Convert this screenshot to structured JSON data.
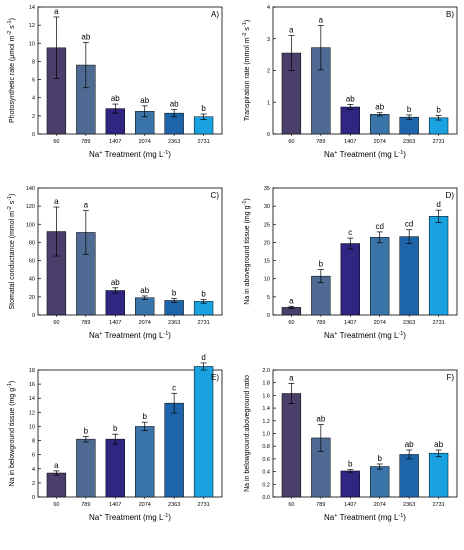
{
  "panel_colors": [
    "#4a3f6b",
    "#4f6a93",
    "#2e2680",
    "#3a74a8",
    "#1d65a8",
    "#1aa1e0"
  ],
  "chart_data": [
    {
      "type": "bar",
      "panel": "A)",
      "categories": [
        "60",
        "789",
        "1407",
        "2074",
        "2363",
        "2731"
      ],
      "values": [
        9.5,
        7.6,
        2.8,
        2.5,
        2.3,
        1.9
      ],
      "errors": [
        3.4,
        2.5,
        0.5,
        0.6,
        0.4,
        0.3
      ],
      "letters": [
        "a",
        "ab",
        "ab",
        "ab",
        "ab",
        "b"
      ],
      "ylim": [
        0,
        14
      ],
      "yticks": [
        "0",
        "2",
        "4",
        "6",
        "8",
        "10",
        "12",
        "14"
      ],
      "ylabel": [
        "Photosynthetic rate (μmol m",
        "-2",
        " s",
        "-1",
        ")"
      ],
      "xlabel": [
        "Na",
        "+",
        " Treatment (mg L",
        "-1",
        ")"
      ]
    },
    {
      "type": "bar",
      "panel": "B)",
      "categories": [
        "60",
        "789",
        "1407",
        "2074",
        "2363",
        "2731"
      ],
      "values": [
        2.55,
        2.72,
        0.85,
        0.62,
        0.53,
        0.51
      ],
      "errors": [
        0.55,
        0.7,
        0.08,
        0.05,
        0.07,
        0.07
      ],
      "letters": [
        "a",
        "a",
        "ab",
        "ab",
        "b",
        "b"
      ],
      "ylim": [
        0,
        4
      ],
      "yticks": [
        "0",
        "1",
        "2",
        "3",
        "4"
      ],
      "ylabel": [
        "Transpiration rate (mmol m",
        "-2",
        " s",
        "-1",
        ")"
      ],
      "xlabel": [
        "Na",
        "+",
        " Treatment (mg L",
        "-1",
        ")"
      ]
    },
    {
      "type": "bar",
      "panel": "C)",
      "categories": [
        "60",
        "789",
        "1407",
        "2074",
        "2363",
        "2731"
      ],
      "values": [
        92,
        91,
        27,
        19,
        16,
        15
      ],
      "errors": [
        27,
        24,
        3,
        2,
        2,
        2
      ],
      "letters": [
        "a",
        "a",
        "ab",
        "ab",
        "b",
        "b"
      ],
      "ylim": [
        0,
        140
      ],
      "yticks": [
        "0",
        "20",
        "40",
        "60",
        "80",
        "100",
        "120",
        "140"
      ],
      "ylabel": [
        "Stomatal conductance (mmol m",
        "-2",
        " s",
        "-1",
        ")"
      ],
      "xlabel": [
        "Na",
        "+",
        " Treatment (mg L",
        "-1",
        ")"
      ]
    },
    {
      "type": "bar",
      "panel": "D)",
      "categories": [
        "60",
        "789",
        "1407",
        "2074",
        "2363",
        "2731"
      ],
      "values": [
        2.1,
        10.7,
        19.7,
        21.4,
        21.6,
        27.2
      ],
      "errors": [
        0.3,
        1.8,
        1.5,
        1.5,
        1.9,
        1.7
      ],
      "letters": [
        "a",
        "b",
        "c",
        "cd",
        "cd",
        "d"
      ],
      "ylim": [
        0,
        35
      ],
      "yticks": [
        "0",
        "5",
        "10",
        "15",
        "20",
        "25",
        "30",
        "35"
      ],
      "ylabel": [
        "Na in aboveground tissue (mg g",
        "-1",
        ")",
        "",
        ""
      ],
      "xlabel": [
        "Na",
        "+",
        " Treatment (mg L",
        "-1",
        ")"
      ]
    },
    {
      "type": "bar",
      "panel": "E)",
      "categories": [
        "60",
        "789",
        "1407",
        "2074",
        "2363",
        "2731"
      ],
      "values": [
        3.4,
        8.2,
        8.2,
        10.0,
        13.3,
        18.5
      ],
      "errors": [
        0.3,
        0.4,
        0.7,
        0.6,
        1.4,
        0.5
      ],
      "letters": [
        "a",
        "b",
        "b",
        "b",
        "c",
        "d"
      ],
      "ylim": [
        0,
        18
      ],
      "yticks": [
        "0",
        "2",
        "4",
        "6",
        "8",
        "10",
        "12",
        "14",
        "16",
        "18"
      ],
      "ylabel": [
        "Na in belowground tissue (mg g",
        "-1",
        ")",
        "",
        ""
      ],
      "xlabel": [
        "Na",
        "+",
        " Treatment (mg L",
        "-1",
        ")"
      ]
    },
    {
      "type": "bar",
      "panel": "F)",
      "categories": [
        "60",
        "789",
        "1407",
        "2074",
        "2363",
        "2731"
      ],
      "values": [
        1.63,
        0.93,
        0.41,
        0.48,
        0.67,
        0.69
      ],
      "errors": [
        0.16,
        0.21,
        0.02,
        0.04,
        0.07,
        0.05
      ],
      "letters": [
        "a",
        "ab",
        "b",
        "b",
        "ab",
        "ab"
      ],
      "ylim": [
        0,
        2.0
      ],
      "yticks": [
        "0.0",
        "0.2",
        "0.4",
        "0.6",
        "0.8",
        "1.0",
        "1.2",
        "1.4",
        "1.6",
        "1.8",
        "2.0"
      ],
      "ylabel": [
        "Na in belowground:aboveground ratio",
        "",
        "",
        "",
        ""
      ],
      "xlabel": [
        "Na",
        "+",
        " Treatment (mg L",
        "-1",
        ")"
      ]
    }
  ]
}
